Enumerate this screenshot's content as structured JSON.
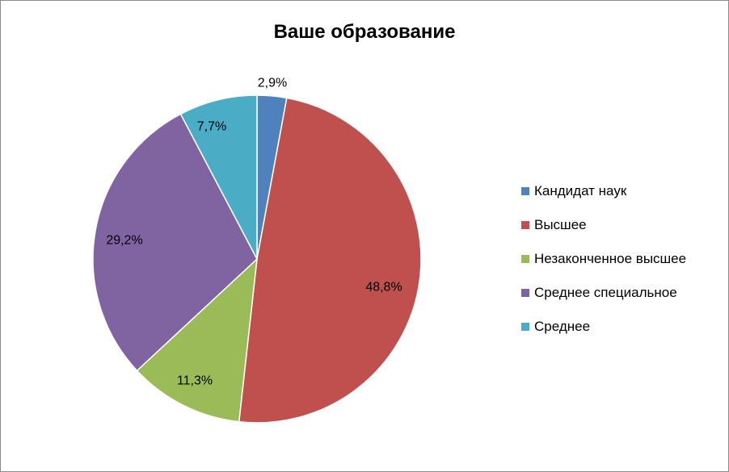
{
  "chart_data": {
    "type": "pie",
    "title": "Ваше образование",
    "slices": [
      {
        "name": "Кандидат наук",
        "value": 2.9,
        "label": "2,9%",
        "color": "#4f81bd"
      },
      {
        "name": "Высшее",
        "value": 48.8,
        "label": "48,8%",
        "color": "#c0504d"
      },
      {
        "name": "Незаконченное высшее",
        "value": 11.3,
        "label": "11,3%",
        "color": "#9bbb59"
      },
      {
        "name": "Среднее специальное",
        "value": 29.2,
        "label": "29,2%",
        "color": "#8064a2"
      },
      {
        "name": "Среднее",
        "value": 7.7,
        "label": "7,7%",
        "color": "#4bacc6"
      }
    ],
    "legend_position": "right",
    "start_angle": "12 o'clock",
    "direction": "clockwise"
  }
}
